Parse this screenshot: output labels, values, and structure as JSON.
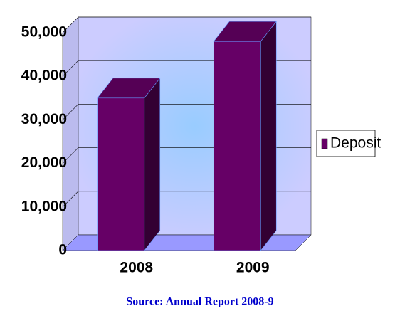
{
  "chart_data": {
    "type": "bar3d",
    "categories": [
      "2008",
      "2009"
    ],
    "series": [
      {
        "name": "Deposit",
        "color": "#660066",
        "values": [
          35000,
          48000
        ]
      }
    ],
    "ylim": [
      0,
      50000
    ],
    "yticks": [
      0,
      {
        "value": 10000,
        "label": "10,000"
      },
      {
        "value": 20000,
        "label": "20,000"
      },
      {
        "value": 30000,
        "label": "30,000"
      },
      {
        "value": 40000,
        "label": "40,000"
      },
      {
        "value": 50000,
        "label": "50,000"
      }
    ],
    "grid": true,
    "legend": "right",
    "source": "Source: Annual Report 2008-9"
  }
}
